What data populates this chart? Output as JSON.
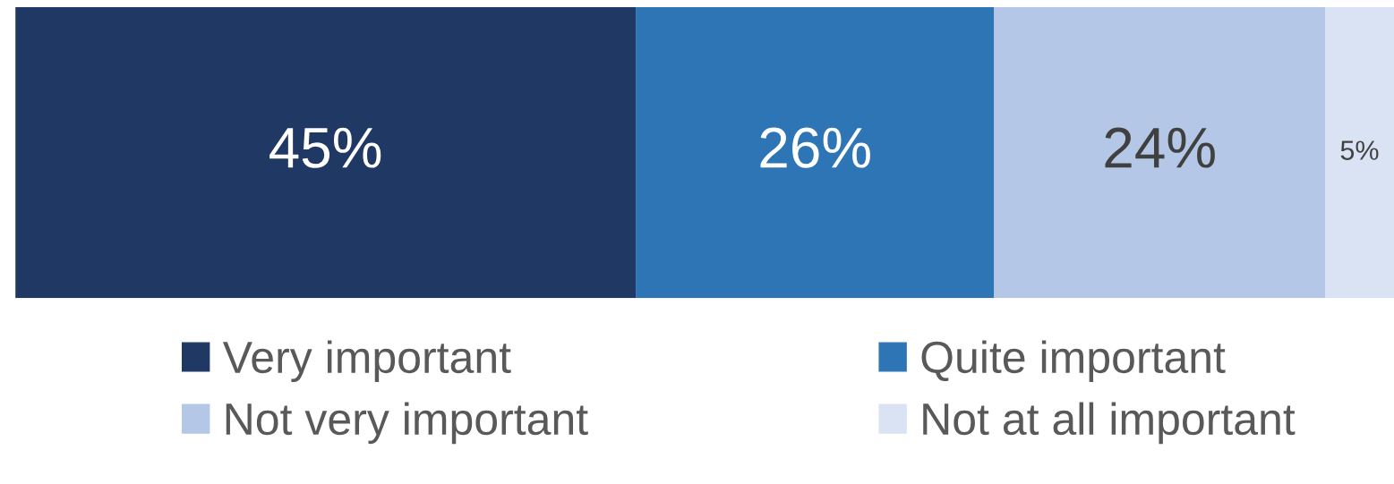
{
  "chart_data": {
    "type": "bar",
    "orientation": "horizontal",
    "stacked": true,
    "categories": [
      null
    ],
    "legend": "bottom",
    "series": [
      {
        "name": "Very important",
        "color": "#203864",
        "values": [
          45
        ],
        "value_labels": [
          "45%"
        ]
      },
      {
        "name": "Quite important",
        "color": "#2e75b6",
        "values": [
          26
        ],
        "value_labels": [
          "26%"
        ]
      },
      {
        "name": "Not very important",
        "color": "#b4c7e7",
        "values": [
          24
        ],
        "value_labels": [
          "24%"
        ]
      },
      {
        "name": "Not at all important",
        "color": "#dae3f3",
        "values": [
          5
        ],
        "value_labels": [
          "5%"
        ]
      }
    ]
  }
}
